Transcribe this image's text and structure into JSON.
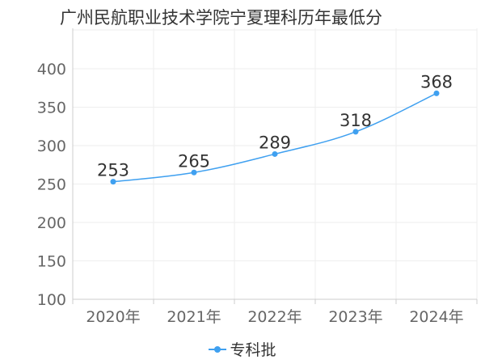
{
  "title": "广州民航职业技术学院宁夏理科历年最低分",
  "colors": {
    "series": "#3fa0f0",
    "grid": "#eeeeee",
    "axis": "#cccccc",
    "tick_text": "#666666",
    "label_text": "#333333"
  },
  "chart_data": {
    "type": "line",
    "title": "广州民航职业技术学院宁夏理科历年最低分",
    "categories": [
      "2020年",
      "2021年",
      "2022年",
      "2023年",
      "2024年"
    ],
    "series": [
      {
        "name": "专科批",
        "values": [
          253,
          265,
          289,
          318,
          368
        ]
      }
    ],
    "ylim": [
      100,
      400
    ],
    "yticks": [
      100,
      150,
      200,
      250,
      300,
      350,
      400
    ],
    "grid": true,
    "legend": "bottom-center",
    "data_labels": true,
    "smooth": true
  }
}
